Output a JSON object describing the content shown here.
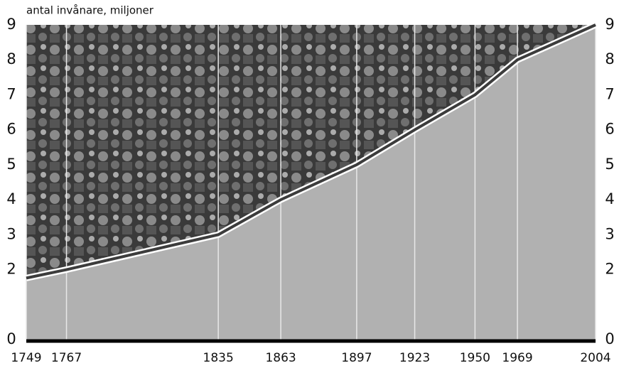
{
  "chart_data": {
    "type": "area",
    "y_label": "antal invånare, miljoner",
    "x": [
      1749,
      1767,
      1835,
      1863,
      1897,
      1923,
      1950,
      1969,
      2004
    ],
    "values": [
      1.76,
      2,
      3,
      4,
      5,
      6,
      7,
      8,
      9
    ],
    "color": "#b1b1b1",
    "xlim": [
      1749,
      2004
    ],
    "xticks": [
      1749,
      1767,
      1835,
      1863,
      1897,
      1923,
      1950,
      1969,
      2004
    ],
    "ylim": [
      0,
      9
    ],
    "yticks": [
      0,
      2,
      3,
      4,
      5,
      6,
      7,
      8,
      9
    ],
    "grid": true
  }
}
